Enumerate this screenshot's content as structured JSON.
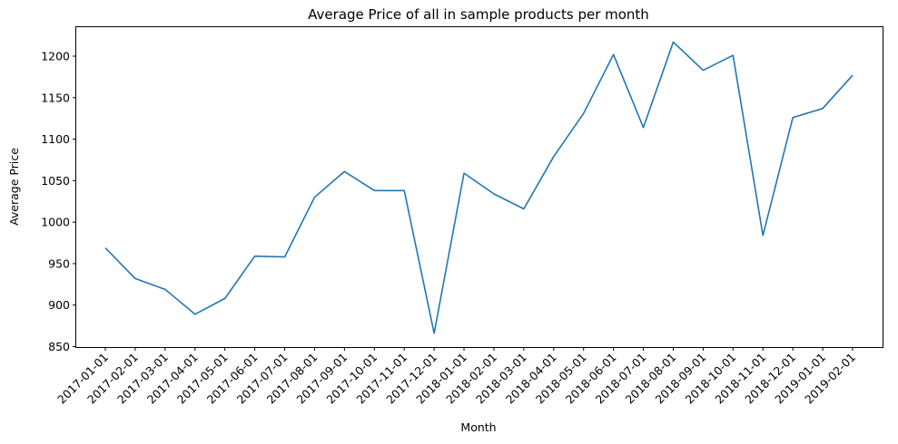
{
  "chart_data": {
    "type": "line",
    "title": "Average Price of all in sample products per month",
    "xlabel": "Month",
    "ylabel": "Average Price",
    "ylim": [
      850,
      1230
    ],
    "yticks": [
      850,
      900,
      950,
      1000,
      1050,
      1100,
      1150,
      1200
    ],
    "grid": false,
    "color": "#1f77b4",
    "categories": [
      "2017-01-01",
      "2017-02-01",
      "2017-03-01",
      "2017-04-01",
      "2017-05-01",
      "2017-06-01",
      "2017-07-01",
      "2017-08-01",
      "2017-09-01",
      "2017-10-01",
      "2017-11-01",
      "2017-12-01",
      "2018-01-01",
      "2018-02-01",
      "2018-03-01",
      "2018-04-01",
      "2018-05-01",
      "2018-06-01",
      "2018-07-01",
      "2018-08-01",
      "2018-09-01",
      "2018-10-01",
      "2018-11-01",
      "2018-12-01",
      "2019-01-01",
      "2019-02-01"
    ],
    "series": [
      {
        "values": [
          969,
          932,
          919,
          889,
          908,
          959,
          958,
          1030,
          1061,
          1038,
          1038,
          866,
          1059,
          1034,
          1016,
          1079,
          1131,
          1202,
          1114,
          1217,
          1183,
          1201,
          984,
          1126,
          1137,
          1177
        ]
      }
    ]
  }
}
